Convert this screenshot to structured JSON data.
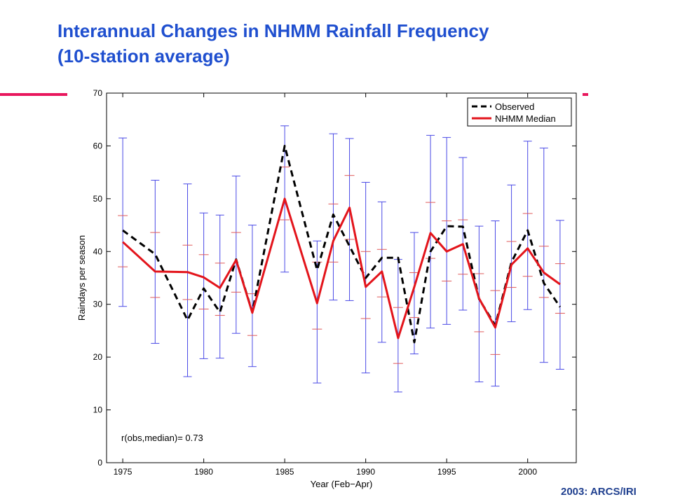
{
  "slide": {
    "title_line1": "Interannual Changes in NHMM Rainfall Frequency",
    "title_line2": "(10-station average)",
    "credit": "2003: ARCS/IRI",
    "accent_color": "#e8175d",
    "title_color": "#1f4fcf"
  },
  "chart_data": {
    "type": "line",
    "title": "",
    "xlabel": "Year (Feb−Apr)",
    "ylabel": "Raindays per season",
    "xlim": [
      1974,
      2003
    ],
    "ylim": [
      0,
      70
    ],
    "xticks": [
      1975,
      1980,
      1985,
      1990,
      1995,
      2000
    ],
    "yticks": [
      0,
      10,
      20,
      30,
      40,
      50,
      60,
      70
    ],
    "grid": false,
    "legend_position": "top-right",
    "annotation": "r(obs,median)= 0.73",
    "x": [
      1975,
      1977,
      1979,
      1980,
      1981,
      1982,
      1983,
      1985,
      1987,
      1988,
      1989,
      1990,
      1991,
      1992,
      1993,
      1994,
      1995,
      1996,
      1997,
      1998,
      1999,
      2000,
      2001,
      2002
    ],
    "series": [
      {
        "name": "Observed",
        "color": "#000000",
        "style": "dashed",
        "values": [
          44,
          39.5,
          27,
          33,
          28.5,
          38.5,
          28.5,
          60,
          36.5,
          47,
          41,
          35,
          38.8,
          38.8,
          22.8,
          40,
          44.8,
          44.7,
          31,
          26,
          38,
          44,
          34,
          29.5
        ]
      },
      {
        "name": "NHMM Median",
        "color": "#e3141b",
        "style": "solid",
        "values": [
          41.8,
          36.2,
          36.1,
          35.1,
          33.1,
          38.4,
          28.4,
          50,
          30.2,
          42,
          48.3,
          33.3,
          36.2,
          23.6,
          33.3,
          43.5,
          40,
          41.4,
          31.1,
          25.6,
          37.5,
          40.6,
          36,
          33.8
        ]
      }
    ],
    "uncertainty": {
      "color": "#4a4ae6",
      "inner_color": "#e05a5a",
      "upper": [
        61.5,
        53.5,
        52.8,
        47.3,
        46.9,
        54.3,
        45,
        63.8,
        42,
        62.3,
        61.4,
        53.1,
        49.4,
        38.5,
        43.6,
        62,
        61.6,
        57.8,
        44.8,
        45.8,
        52.6,
        60.9,
        59.6,
        45.9
      ],
      "lower": [
        29.6,
        22.6,
        16.3,
        19.7,
        19.8,
        24.5,
        18.2,
        36.1,
        15.1,
        30.8,
        30.7,
        17,
        22.8,
        13.4,
        20.6,
        25.5,
        26.2,
        28.9,
        15.3,
        14.5,
        26.7,
        29,
        19,
        17.7
      ],
      "inner_upper": [
        46.8,
        43.6,
        41.2,
        39.4,
        37.8,
        43.6,
        32,
        56,
        38,
        49,
        54.4,
        40,
        40.4,
        29.4,
        36,
        49.3,
        45.8,
        46,
        35.8,
        32.6,
        41.9,
        47.2,
        41,
        37.7
      ],
      "inner_lower": [
        37.1,
        31.3,
        30.9,
        29.1,
        27.9,
        32.3,
        24.1,
        46,
        25.3,
        38,
        42.3,
        27.3,
        31.4,
        18.8,
        27.5,
        38.7,
        34.4,
        35.7,
        24.8,
        20.5,
        33.2,
        35.3,
        31.3,
        28.3
      ]
    }
  }
}
